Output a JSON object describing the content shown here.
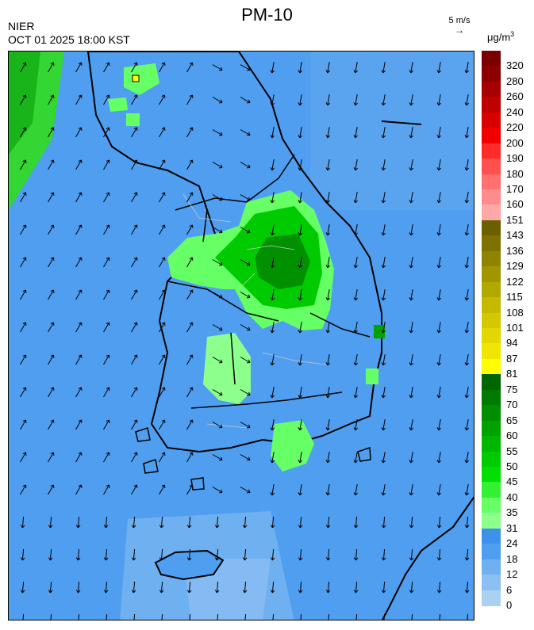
{
  "header": {
    "title": "PM-10",
    "agency": "NIER",
    "datetime": "OCT 01 2025 18:00 KST",
    "wind_reference": "5 m/s",
    "unit_base": "μg/m",
    "unit_exp": "3"
  },
  "colorbar": {
    "levels": [
      {
        "label": "320",
        "color": "#7a0000"
      },
      {
        "label": "280",
        "color": "#8e0000"
      },
      {
        "label": "260",
        "color": "#a60000"
      },
      {
        "label": "240",
        "color": "#be0000"
      },
      {
        "label": "220",
        "color": "#d80000"
      },
      {
        "label": "200",
        "color": "#f20000"
      },
      {
        "label": "190",
        "color": "#ff2a2a"
      },
      {
        "label": "180",
        "color": "#ff5050"
      },
      {
        "label": "170",
        "color": "#ff7070"
      },
      {
        "label": "160",
        "color": "#ff8c8c"
      },
      {
        "label": "151",
        "color": "#ffa8a8"
      },
      {
        "label": "143",
        "color": "#6b6000"
      },
      {
        "label": "136",
        "color": "#7d7200"
      },
      {
        "label": "129",
        "color": "#8f8400"
      },
      {
        "label": "122",
        "color": "#a19600"
      },
      {
        "label": "115",
        "color": "#b3a800"
      },
      {
        "label": "108",
        "color": "#c5ba00"
      },
      {
        "label": "101",
        "color": "#d4c900"
      },
      {
        "label": "94",
        "color": "#e2d800"
      },
      {
        "label": "87",
        "color": "#f1e600"
      },
      {
        "label": "81",
        "color": "#ffff00"
      },
      {
        "label": "75",
        "color": "#006600"
      },
      {
        "label": "70",
        "color": "#007a00"
      },
      {
        "label": "65",
        "color": "#008e00"
      },
      {
        "label": "60",
        "color": "#00a200"
      },
      {
        "label": "55",
        "color": "#00b600"
      },
      {
        "label": "50",
        "color": "#00ca00"
      },
      {
        "label": "45",
        "color": "#00e000"
      },
      {
        "label": "40",
        "color": "#33f033"
      },
      {
        "label": "35",
        "color": "#66ff66"
      },
      {
        "label": "31",
        "color": "#8cff8c"
      },
      {
        "label": "24",
        "color": "#3e91ea"
      },
      {
        "label": "18",
        "color": "#4f9ef0"
      },
      {
        "label": "12",
        "color": "#6fb0f0"
      },
      {
        "label": "6",
        "color": "#8dc0f2"
      },
      {
        "label": "0",
        "color": "#aad2ee"
      }
    ]
  }
}
